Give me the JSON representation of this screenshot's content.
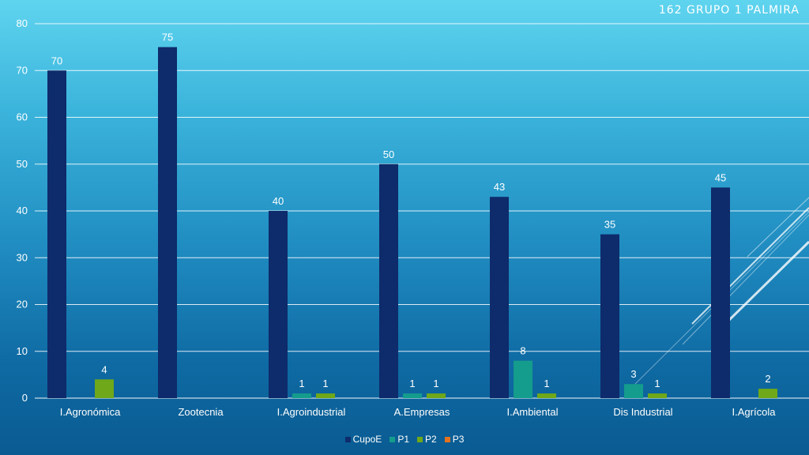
{
  "chart_data": {
    "type": "bar",
    "title": "162  GRUPO 1  PALMIRA",
    "xlabel": "",
    "ylabel": "",
    "ylim": [
      0,
      80
    ],
    "yticks": [
      0,
      10,
      20,
      30,
      40,
      50,
      60,
      70,
      80
    ],
    "grid": true,
    "legend_position": "bottom",
    "categories": [
      "I.Agronómica",
      "Zootecnia",
      "I.Agroindustrial",
      "A.Empresas",
      "I.Ambiental",
      "Dis Industrial",
      "I.Agrícola"
    ],
    "series": [
      {
        "name": "CupoE",
        "color": "#0e2b6b",
        "values": [
          70,
          75,
          40,
          50,
          43,
          35,
          45
        ]
      },
      {
        "name": "P1",
        "color": "#149c8c",
        "values": [
          null,
          null,
          1,
          1,
          8,
          3,
          null
        ]
      },
      {
        "name": "P2",
        "color": "#6fa819",
        "values": [
          4,
          null,
          1,
          1,
          1,
          1,
          2
        ]
      },
      {
        "name": "P3",
        "color": "#e4721e",
        "values": [
          null,
          null,
          null,
          null,
          null,
          null,
          null
        ]
      }
    ]
  }
}
